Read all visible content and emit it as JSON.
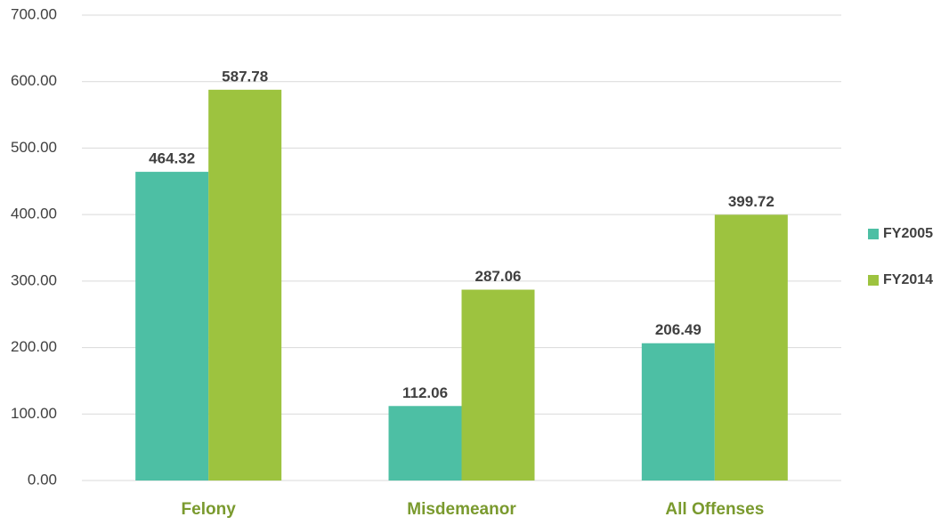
{
  "chart_data": {
    "type": "bar",
    "categories": [
      "Felony",
      "Misdemeanor",
      "All Offenses"
    ],
    "series": [
      {
        "name": "FY2005",
        "color": "#4dbfa4",
        "values": [
          464.32,
          112.06,
          206.49
        ]
      },
      {
        "name": "FY2014",
        "color": "#9dc33f",
        "values": [
          587.78,
          287.06,
          399.72
        ]
      }
    ],
    "ylim": [
      0,
      700
    ],
    "yticks": [
      {
        "value": 0,
        "label": "0.00"
      },
      {
        "value": 100,
        "label": "100.00"
      },
      {
        "value": 200,
        "label": "200.00"
      },
      {
        "value": 300,
        "label": "300.00"
      },
      {
        "value": 400,
        "label": "400.00"
      },
      {
        "value": 500,
        "label": "500.00"
      },
      {
        "value": 600,
        "label": "600.00"
      },
      {
        "value": 700,
        "label": "700.00"
      }
    ],
    "grid": true,
    "legend": "right"
  }
}
